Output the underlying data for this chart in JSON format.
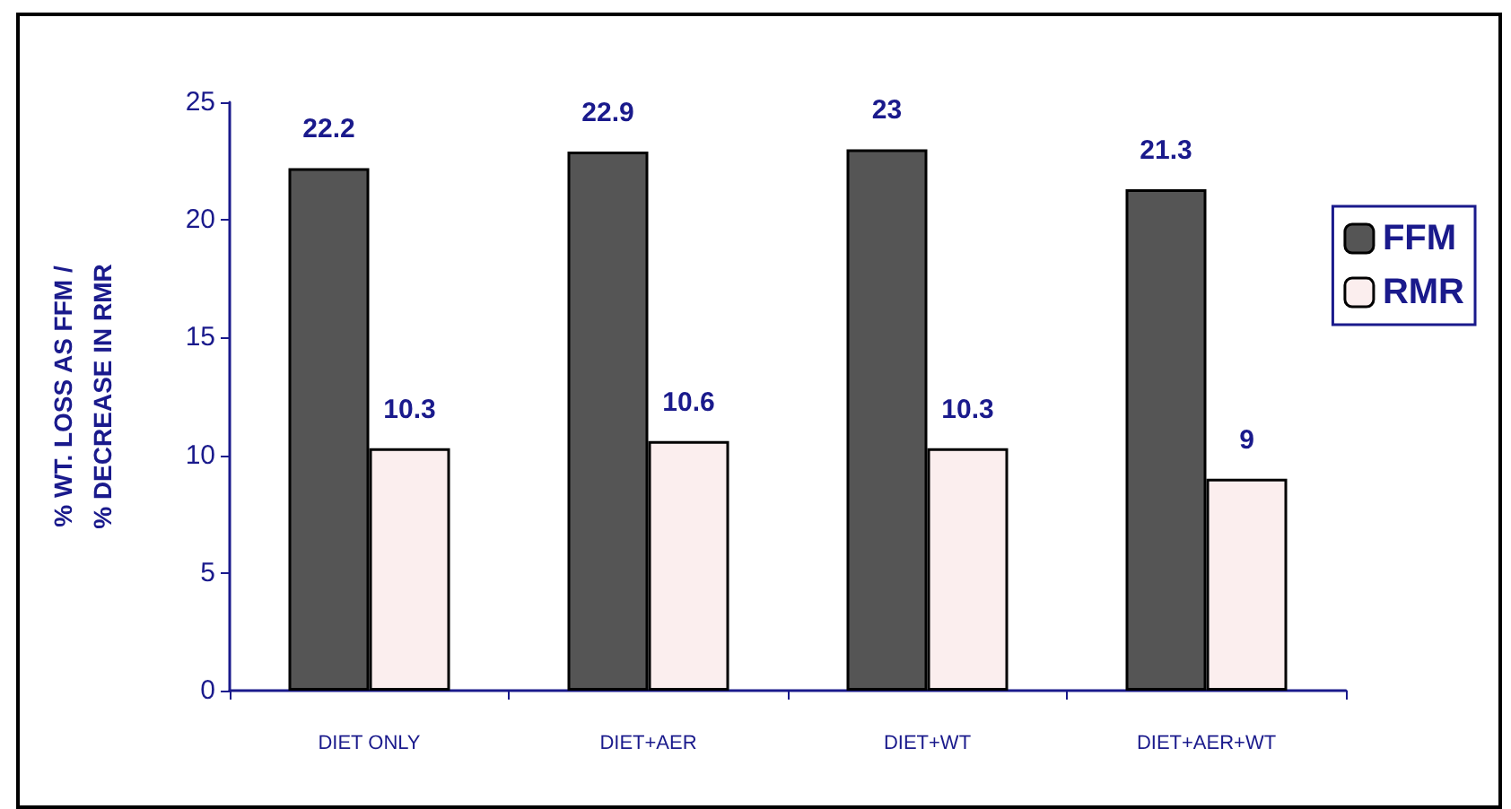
{
  "chart_data": {
    "type": "bar",
    "ylabel": "% WT. LOSS AS FFM /\n% DECREASE IN RMR",
    "categories": [
      "DIET ONLY",
      "DIET+AER",
      "DIET+WT",
      "DIET+AER+WT"
    ],
    "series": [
      {
        "name": "FFM",
        "color": "#555555",
        "values": [
          22.2,
          22.9,
          23,
          21.3
        ]
      },
      {
        "name": "RMR",
        "color": "#fbeeee",
        "values": [
          10.3,
          10.6,
          10.3,
          9
        ]
      }
    ],
    "ylim": [
      0,
      25
    ],
    "yticks": [
      0,
      5,
      10,
      15,
      20,
      25
    ],
    "grid": false,
    "legend": "right",
    "data_labels": true
  }
}
